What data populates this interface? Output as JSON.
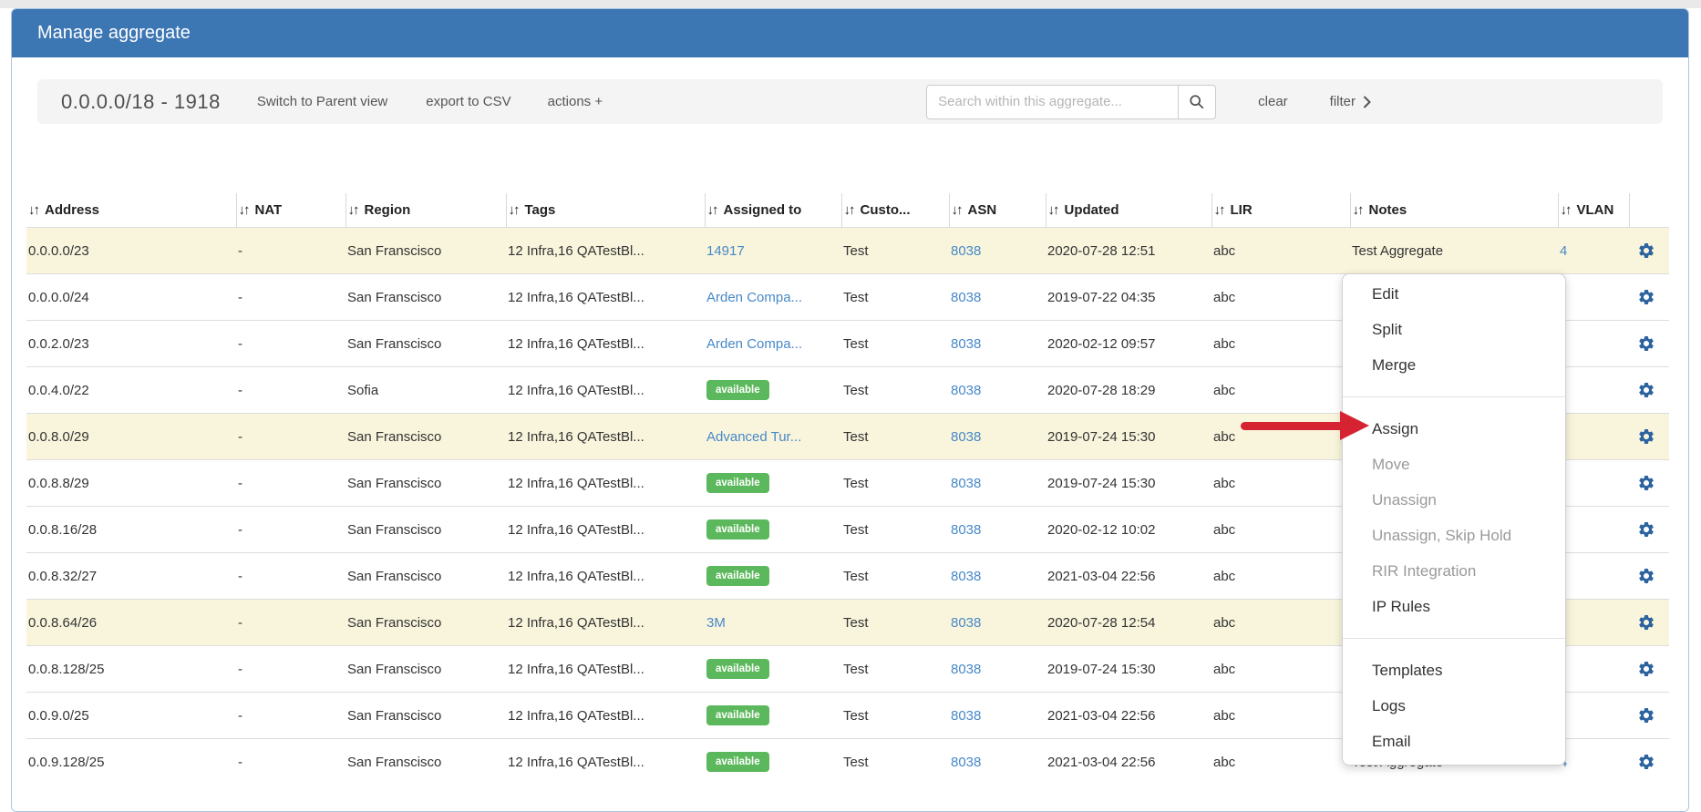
{
  "colors": {
    "header_blue": "#3c76b3",
    "highlight_row": "#f9f5dc",
    "badge_green": "#5cb85c",
    "link_blue": "#4788c8",
    "gear_blue": "#2d639e",
    "arrow_red": "#d62331"
  },
  "window": {
    "title": "Manage aggregate"
  },
  "toolbar": {
    "aggregate_label": "0.0.0.0/18 - 1918",
    "switch_parent_view": "Switch to Parent view",
    "export_csv": "export to CSV",
    "actions": "actions +",
    "search_placeholder": "Search within this aggregate...",
    "clear": "clear",
    "filter": "filter"
  },
  "table": {
    "sort_icon": "↓↑",
    "columns": [
      {
        "key": "address",
        "label": "Address"
      },
      {
        "key": "nat",
        "label": "NAT"
      },
      {
        "key": "region",
        "label": "Region"
      },
      {
        "key": "tags",
        "label": "Tags"
      },
      {
        "key": "assigned",
        "label": "Assigned to"
      },
      {
        "key": "customer",
        "label": "Custo..."
      },
      {
        "key": "asn",
        "label": "ASN"
      },
      {
        "key": "updated",
        "label": "Updated"
      },
      {
        "key": "lir",
        "label": "LIR"
      },
      {
        "key": "notes",
        "label": "Notes"
      },
      {
        "key": "vlan",
        "label": "VLAN"
      }
    ],
    "rows": [
      {
        "address": "0.0.0.0/23",
        "nat": "-",
        "region": "San Franscisco",
        "tags": "12 Infra,16 QATestBl...",
        "assigned": {
          "type": "link",
          "text": "14917"
        },
        "customer": "Test",
        "asn": "8038",
        "updated": "2020-07-28 12:51",
        "lir": "abc",
        "notes": "Test Aggregate",
        "vlan": "4",
        "highlighted": true
      },
      {
        "address": "0.0.0.0/24",
        "nat": "-",
        "region": "San Franscisco",
        "tags": "12 Infra,16 QATestBl...",
        "assigned": {
          "type": "link",
          "text": "Arden Compa..."
        },
        "customer": "Test",
        "asn": "8038",
        "updated": "2019-07-22 04:35",
        "lir": "abc",
        "notes": "",
        "vlan": "",
        "highlighted": false
      },
      {
        "address": "0.0.2.0/23",
        "nat": "-",
        "region": "San Franscisco",
        "tags": "12 Infra,16 QATestBl...",
        "assigned": {
          "type": "link",
          "text": "Arden Compa..."
        },
        "customer": "Test",
        "asn": "8038",
        "updated": "2020-02-12 09:57",
        "lir": "abc",
        "notes": "",
        "vlan": "",
        "highlighted": false
      },
      {
        "address": "0.0.4.0/22",
        "nat": "-",
        "region": "Sofia",
        "tags": "12 Infra,16 QATestBl...",
        "assigned": {
          "type": "badge",
          "text": "available"
        },
        "customer": "Test",
        "asn": "8038",
        "updated": "2020-07-28 18:29",
        "lir": "abc",
        "notes": "",
        "vlan": "",
        "highlighted": false
      },
      {
        "address": "0.0.8.0/29",
        "nat": "-",
        "region": "San Franscisco",
        "tags": "12 Infra,16 QATestBl...",
        "assigned": {
          "type": "link",
          "text": "Advanced Tur..."
        },
        "customer": "Test",
        "asn": "8038",
        "updated": "2019-07-24 15:30",
        "lir": "abc",
        "notes": "",
        "vlan": "",
        "highlighted": true
      },
      {
        "address": "0.0.8.8/29",
        "nat": "-",
        "region": "San Franscisco",
        "tags": "12 Infra,16 QATestBl...",
        "assigned": {
          "type": "badge",
          "text": "available"
        },
        "customer": "Test",
        "asn": "8038",
        "updated": "2019-07-24 15:30",
        "lir": "abc",
        "notes": "",
        "vlan": "",
        "highlighted": false
      },
      {
        "address": "0.0.8.16/28",
        "nat": "-",
        "region": "San Franscisco",
        "tags": "12 Infra,16 QATestBl...",
        "assigned": {
          "type": "badge",
          "text": "available"
        },
        "customer": "Test",
        "asn": "8038",
        "updated": "2020-02-12 10:02",
        "lir": "abc",
        "notes": "",
        "vlan": "",
        "highlighted": false
      },
      {
        "address": "0.0.8.32/27",
        "nat": "-",
        "region": "San Franscisco",
        "tags": "12 Infra,16 QATestBl...",
        "assigned": {
          "type": "badge",
          "text": "available"
        },
        "customer": "Test",
        "asn": "8038",
        "updated": "2021-03-04 22:56",
        "lir": "abc",
        "notes": "",
        "vlan": "",
        "highlighted": false
      },
      {
        "address": "0.0.8.64/26",
        "nat": "-",
        "region": "San Franscisco",
        "tags": "12 Infra,16 QATestBl...",
        "assigned": {
          "type": "link",
          "text": "3M"
        },
        "customer": "Test",
        "asn": "8038",
        "updated": "2020-07-28 12:54",
        "lir": "abc",
        "notes": "",
        "vlan": "",
        "highlighted": true
      },
      {
        "address": "0.0.8.128/25",
        "nat": "-",
        "region": "San Franscisco",
        "tags": "12 Infra,16 QATestBl...",
        "assigned": {
          "type": "badge",
          "text": "available"
        },
        "customer": "Test",
        "asn": "8038",
        "updated": "2019-07-24 15:30",
        "lir": "abc",
        "notes": "",
        "vlan": "",
        "highlighted": false
      },
      {
        "address": "0.0.9.0/25",
        "nat": "-",
        "region": "San Franscisco",
        "tags": "12 Infra,16 QATestBl...",
        "assigned": {
          "type": "badge",
          "text": "available"
        },
        "customer": "Test",
        "asn": "8038",
        "updated": "2021-03-04 22:56",
        "lir": "abc",
        "notes": "",
        "vlan": "",
        "highlighted": false
      },
      {
        "address": "0.0.9.128/25",
        "nat": "-",
        "region": "San Franscisco",
        "tags": "12 Infra,16 QATestBl...",
        "assigned": {
          "type": "badge",
          "text": "available"
        },
        "customer": "Test",
        "asn": "8038",
        "updated": "2021-03-04 22:56",
        "lir": "abc",
        "notes": "Test Aggregate",
        "vlan": "4",
        "highlighted": false
      }
    ]
  },
  "context_menu": {
    "items": [
      {
        "type": "item",
        "label": "Edit",
        "enabled": true
      },
      {
        "type": "item",
        "label": "Split",
        "enabled": true
      },
      {
        "type": "item",
        "label": "Merge",
        "enabled": true
      },
      {
        "type": "divider"
      },
      {
        "type": "item",
        "label": "Assign",
        "enabled": true,
        "pointed": true
      },
      {
        "type": "item",
        "label": "Move",
        "enabled": false
      },
      {
        "type": "item",
        "label": "Unassign",
        "enabled": false
      },
      {
        "type": "item",
        "label": "Unassign, Skip Hold",
        "enabled": false
      },
      {
        "type": "item",
        "label": "RIR Integration",
        "enabled": false
      },
      {
        "type": "item",
        "label": "IP Rules",
        "enabled": true
      },
      {
        "type": "divider"
      },
      {
        "type": "item",
        "label": "Templates",
        "enabled": true
      },
      {
        "type": "item",
        "label": "Logs",
        "enabled": true
      },
      {
        "type": "item",
        "label": "Email",
        "enabled": true
      }
    ]
  }
}
